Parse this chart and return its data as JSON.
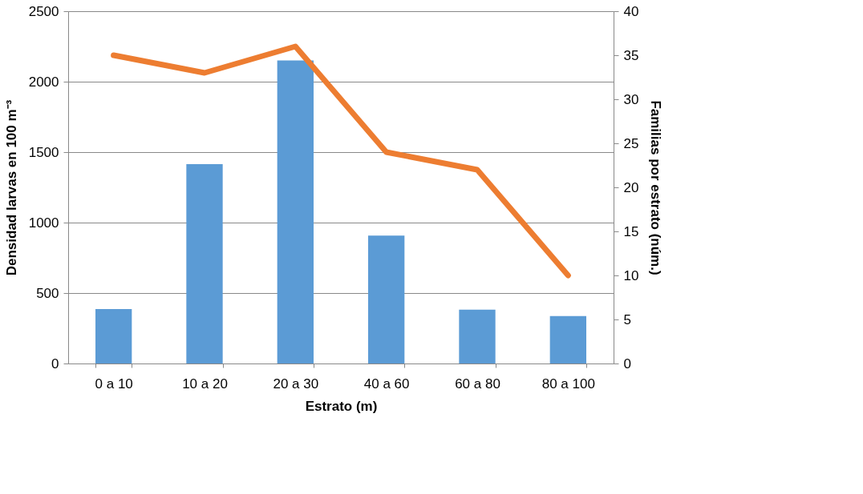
{
  "chart_data": {
    "type": "bar",
    "xlabel": "Estrato (m)",
    "ylabel": "Densidad larvas en 100 m⁻³",
    "y2label": "Familias por estrato (núm.)",
    "categories": [
      "0  a 10",
      "10 a 20",
      "20 a 30",
      "40 a 60",
      "60 a 80",
      "80 a 100"
    ],
    "series": [
      {
        "color": "#5b9bd5",
        "values": [
          387,
          1415,
          2150,
          907,
          382,
          337
        ]
      },
      {
        "type": "line",
        "axis": "y2",
        "color": "#ed7d31",
        "values": [
          35,
          33,
          36,
          24,
          22,
          10
        ]
      }
    ],
    "ylim": [
      0,
      2500
    ],
    "yticks": [
      0,
      500,
      1000,
      1500,
      2000,
      2500
    ],
    "y2lim": [
      0,
      40
    ],
    "y2ticks": [
      0,
      5,
      10,
      15,
      20,
      25,
      30,
      35,
      40
    ],
    "grid": "y"
  }
}
